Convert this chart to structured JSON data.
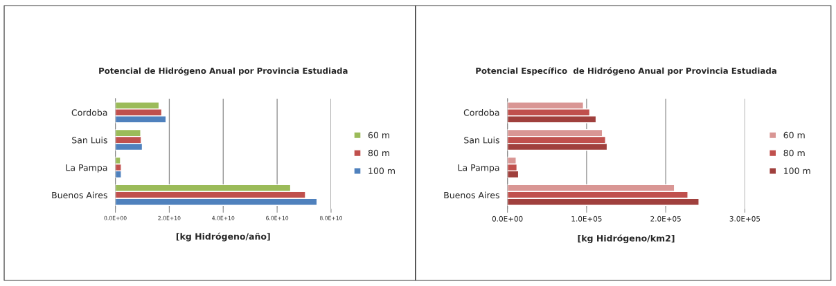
{
  "chart_data": [
    {
      "type": "bar",
      "orientation": "horizontal",
      "title": "Potencial de Hidrógeno Anual por Provincia Estudiada",
      "xlabel": "[kg Hidrógeno/año]",
      "categories": [
        "Cordoba",
        "San Luis",
        "La Pampa",
        "Buenos Aires"
      ],
      "series": [
        {
          "name": "60 m",
          "color": "#9bbb59",
          "values": [
            16200000000.0,
            9400000000.0,
            1900000000.0,
            65000000000.0
          ]
        },
        {
          "name": "80 m",
          "color": "#c0504d",
          "values": [
            17200000000.0,
            9600000000.0,
            2200000000.0,
            70500000000.0
          ]
        },
        {
          "name": "100 m",
          "color": "#4f81bd",
          "values": [
            18800000000.0,
            10000000000.0,
            2200000000.0,
            74800000000.0
          ]
        }
      ],
      "xlim": [
        0,
        80000000000.0
      ],
      "xticks": [
        {
          "value": 0,
          "label": "0.0E+00"
        },
        {
          "value": 20000000000.0,
          "label": "2.0E+10"
        },
        {
          "value": 40000000000.0,
          "label": "4.0E+10"
        },
        {
          "value": 60000000000.0,
          "label": "6.0E+10"
        },
        {
          "value": 80000000000.0,
          "label": "8.0E+10"
        }
      ],
      "grid": "x",
      "legend": "right"
    },
    {
      "type": "bar",
      "orientation": "horizontal",
      "title": "Potencial Específico  de Hidrógeno Anual por Provincia Estudiada",
      "xlabel": "[kg Hidrógeno/km2]",
      "categories": [
        "Cordoba",
        "San Luis",
        "La Pampa",
        "Buenos Aires"
      ],
      "series": [
        {
          "name": "60 m",
          "color": "#d99694",
          "values": [
            96000.0,
            120000.0,
            11000.0,
            211000.0
          ]
        },
        {
          "name": "80 m",
          "color": "#c0504d",
          "values": [
            104000.0,
            124000.0,
            12000.0,
            228000.0
          ]
        },
        {
          "name": "100 m",
          "color": "#a0403d",
          "values": [
            112000.0,
            126000.0,
            14000.0,
            242000.0
          ]
        }
      ],
      "xlim": [
        0,
        300000.0
      ],
      "xticks": [
        {
          "value": 0,
          "label": "0.0E+00"
        },
        {
          "value": 100000.0,
          "label": "1.0E+05"
        },
        {
          "value": 200000.0,
          "label": "2.0E+05"
        },
        {
          "value": 300000.0,
          "label": "3.0E+05"
        }
      ],
      "grid": "x",
      "legend": "right"
    }
  ]
}
